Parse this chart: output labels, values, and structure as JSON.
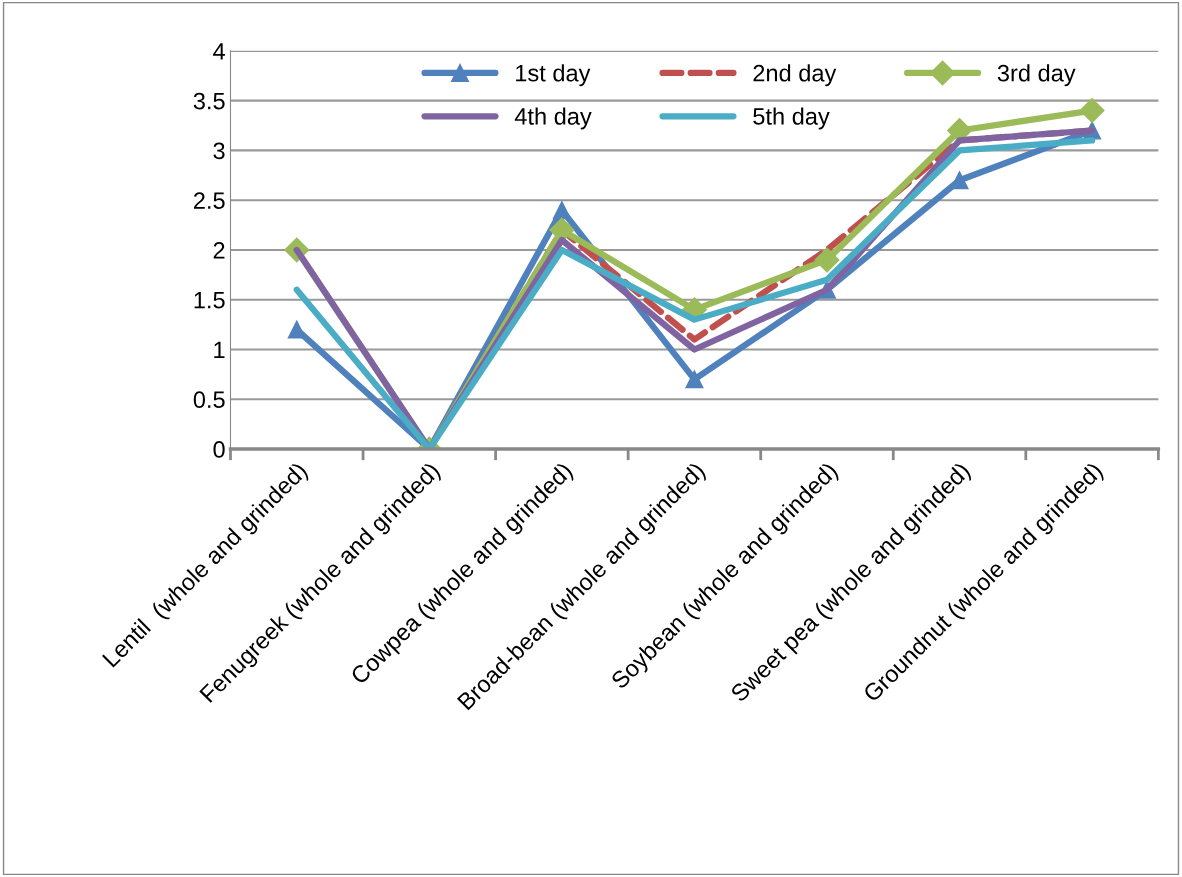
{
  "chart_data": {
    "type": "line",
    "categories": [
      "Lentil  (whole and grinded)",
      "Fenugreek (whole and grinded)",
      "Cowpea (whole and grinded)",
      "Broad-bean (whole and grinded)",
      "Soybean (whole and grinded)",
      "Sweet pea (whole and grinded)",
      "Groundnut (whole and grinded)"
    ],
    "series": [
      {
        "name": "1st day",
        "color": "#4f81bd",
        "values": [
          1.2,
          0,
          2.4,
          0.7,
          1.6,
          2.7,
          3.2
        ],
        "marker": "triangle",
        "line_style": "solid"
      },
      {
        "name": "2nd day",
        "color": "#c0504d",
        "values": [
          null,
          0,
          2.2,
          1.1,
          2.0,
          3.1,
          3.2
        ],
        "marker": "none",
        "line_style": "dashed"
      },
      {
        "name": "3rd day",
        "color": "#9bbb59",
        "values": [
          2.0,
          0,
          2.2,
          1.4,
          1.9,
          3.2,
          3.4
        ],
        "marker": "diamond",
        "line_style": "solid"
      },
      {
        "name": "4th day",
        "color": "#8064a2",
        "values": [
          2.0,
          0,
          2.1,
          1.0,
          1.6,
          3.1,
          3.2
        ],
        "marker": "none",
        "line_style": "solid"
      },
      {
        "name": "5th day",
        "color": "#4bacc6",
        "values": [
          1.6,
          0,
          2.0,
          1.3,
          1.7,
          3.0,
          3.1
        ],
        "marker": "none",
        "line_style": "solid"
      }
    ],
    "ylim": [
      0,
      4
    ],
    "yticks": [
      0,
      0.5,
      1,
      1.5,
      2,
      2.5,
      3,
      3.5,
      4
    ],
    "grid": "y",
    "legend": "top"
  }
}
